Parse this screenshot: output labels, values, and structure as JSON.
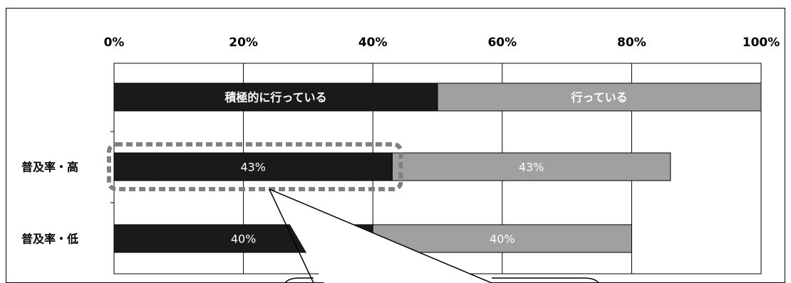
{
  "chart_data": {
    "type": "bar",
    "orientation": "horizontal",
    "stacked": true,
    "xlim": [
      0,
      100
    ],
    "x_ticks": [
      "0%",
      "20%",
      "40%",
      "60%",
      "80%",
      "100%"
    ],
    "legend_bar": {
      "segments": [
        {
          "label": "積極的に行っている",
          "value": 50,
          "color": "#1a1a1a"
        },
        {
          "label": "行っている",
          "value": 50,
          "color": "#a0a0a0"
        }
      ]
    },
    "categories": [
      "普及率・高",
      "普及率・低"
    ],
    "series": [
      {
        "values": [
          43,
          40
        ],
        "labels": [
          "43%",
          "40%"
        ],
        "color": "#1a1a1a"
      },
      {
        "values": [
          43,
          40
        ],
        "labels": [
          "43%",
          "40%"
        ],
        "color": "#a0a0a0"
      }
    ],
    "grid": true,
    "highlight": {
      "category": "普及率・高",
      "series": 0,
      "style": "dotted-rounded-box"
    },
    "callout": {
      "anchor_category": "普及率・高",
      "anchor_value": 24
    }
  }
}
